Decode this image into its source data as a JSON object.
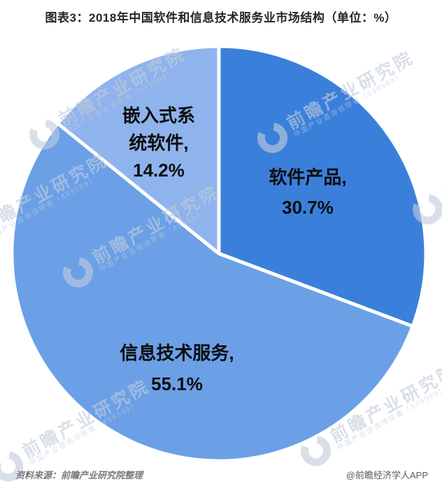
{
  "chart_data": {
    "type": "pie",
    "title": "图表3：2018年中国软件和信息技术服务业市场结构（单位：%）",
    "unit": "%",
    "direction": "clockwise",
    "start_angle_deg": 0,
    "legend_position": "none",
    "slices": [
      {
        "name": "软件产品",
        "value": 30.7,
        "color": "#3a80db",
        "label_lines": [
          "软件产品,",
          "30.7%"
        ]
      },
      {
        "name": "信息技术服务",
        "value": 55.1,
        "color": "#6ba0e7",
        "label_lines": [
          "信息技术服务,",
          "55.1%"
        ]
      },
      {
        "name": "嵌入式系统软件",
        "value": 14.2,
        "color": "#8fb3ec",
        "label_lines": [
          "嵌入式系",
          "统软件,",
          "14.2%"
        ]
      }
    ]
  },
  "footer": {
    "source": "资料来源：前瞻产业研究院整理",
    "credit": "@前瞻经济学人APP"
  },
  "watermark": {
    "main": "前瞻产业研究院",
    "sub": "中国产业咨询领导者（839599）"
  },
  "colors": {
    "background": "#ffffff",
    "slice_border": "#ffffff",
    "title_text": "#262626",
    "label_text": "#0d0d0d",
    "source_text": "#7a7a7a",
    "credit_text": "#595959"
  }
}
